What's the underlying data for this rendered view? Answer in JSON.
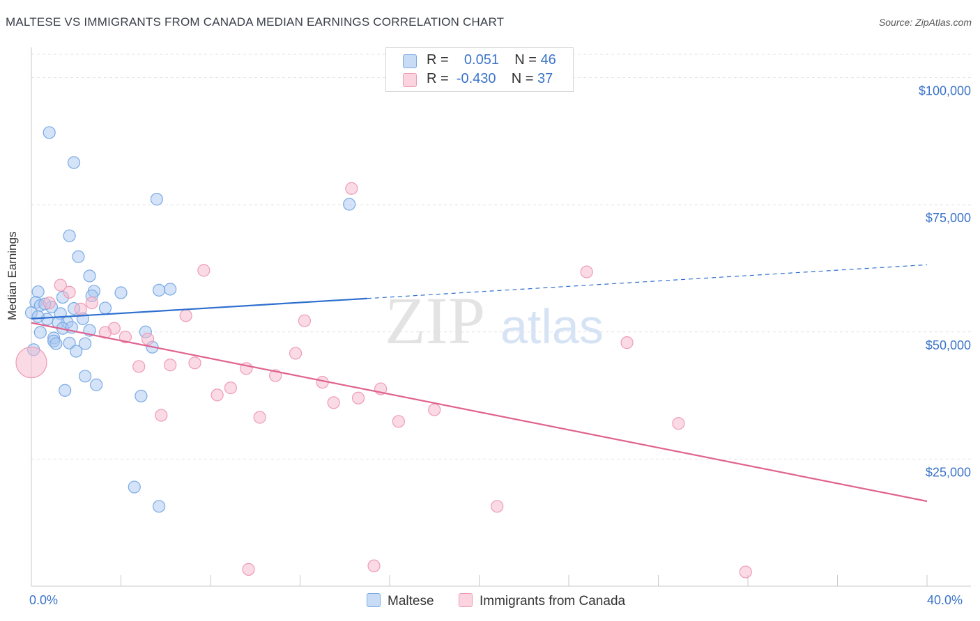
{
  "title": "MALTESE VS IMMIGRANTS FROM CANADA MEDIAN EARNINGS CORRELATION CHART",
  "source": "Source: ZipAtlas.com",
  "watermark": {
    "zip": "ZIP",
    "atlas": "atlas"
  },
  "legend": {
    "rows": [
      {
        "r_label": "R =",
        "r_value": "0.051",
        "n_label": "N =",
        "n_value": "46",
        "color": "#a9c8ef"
      },
      {
        "r_label": "R =",
        "r_value": "-0.430",
        "n_label": "N =",
        "n_value": "37",
        "color": "#f5b8cb"
      }
    ]
  },
  "bottom_legend": [
    {
      "label": "Maltese",
      "color": "#a9c8ef"
    },
    {
      "label": "Immigrants from Canada",
      "color": "#f5b8cb"
    }
  ],
  "x_axis": {
    "min_label": "0.0%",
    "max_label": "40.0%"
  },
  "chart_data": {
    "type": "scatter",
    "title": "MALTESE VS IMMIGRANTS FROM CANADA MEDIAN EARNINGS CORRELATION CHART",
    "xlabel": "",
    "ylabel": "Median Earnings",
    "xlim": [
      0,
      40
    ],
    "ylim": [
      0,
      105000
    ],
    "y_ticks": [
      {
        "value": 25000,
        "label": "$25,000"
      },
      {
        "value": 50000,
        "label": "$50,000"
      },
      {
        "value": 75000,
        "label": "$75,000"
      },
      {
        "value": 100000,
        "label": "$100,000"
      }
    ],
    "grid": true,
    "legend_position": "top-center",
    "series": [
      {
        "name": "Maltese",
        "color": "#7aaae6",
        "fill": "#a9c8ef",
        "line_color": "#2e6fcf",
        "trend": {
          "x0": 0,
          "y0": 52600,
          "x1": 40,
          "y1": 63200,
          "solid_until": 15
        },
        "points": [
          {
            "x": 0.8,
            "y": 89200
          },
          {
            "x": 1.9,
            "y": 83300
          },
          {
            "x": 5.6,
            "y": 76100
          },
          {
            "x": 14.2,
            "y": 75100
          },
          {
            "x": 1.7,
            "y": 68900
          },
          {
            "x": 2.1,
            "y": 64800
          },
          {
            "x": 2.6,
            "y": 61000
          },
          {
            "x": 0.3,
            "y": 57900
          },
          {
            "x": 2.8,
            "y": 58000
          },
          {
            "x": 4.0,
            "y": 57700
          },
          {
            "x": 5.7,
            "y": 58200
          },
          {
            "x": 6.2,
            "y": 58400
          },
          {
            "x": 2.7,
            "y": 57100
          },
          {
            "x": 1.4,
            "y": 56800
          },
          {
            "x": 0.2,
            "y": 55800
          },
          {
            "x": 0.4,
            "y": 55200
          },
          {
            "x": 0.9,
            "y": 54900
          },
          {
            "x": 1.9,
            "y": 54600
          },
          {
            "x": 3.3,
            "y": 54700
          },
          {
            "x": 0.0,
            "y": 53800
          },
          {
            "x": 1.3,
            "y": 53600
          },
          {
            "x": 0.7,
            "y": 52500
          },
          {
            "x": 2.3,
            "y": 52600
          },
          {
            "x": 1.6,
            "y": 51900
          },
          {
            "x": 1.2,
            "y": 51800
          },
          {
            "x": 1.4,
            "y": 50700
          },
          {
            "x": 2.6,
            "y": 50300
          },
          {
            "x": 0.4,
            "y": 49900
          },
          {
            "x": 1.0,
            "y": 48800
          },
          {
            "x": 5.1,
            "y": 50000
          },
          {
            "x": 1.0,
            "y": 48200
          },
          {
            "x": 1.1,
            "y": 47700
          },
          {
            "x": 1.7,
            "y": 47800
          },
          {
            "x": 2.4,
            "y": 47700
          },
          {
            "x": 0.1,
            "y": 46500
          },
          {
            "x": 2.0,
            "y": 46200
          },
          {
            "x": 5.4,
            "y": 47000
          },
          {
            "x": 2.4,
            "y": 41300
          },
          {
            "x": 2.9,
            "y": 39600
          },
          {
            "x": 1.5,
            "y": 38500
          },
          {
            "x": 4.9,
            "y": 37400
          },
          {
            "x": 4.6,
            "y": 19500
          },
          {
            "x": 5.7,
            "y": 15700
          },
          {
            "x": 0.6,
            "y": 55500
          },
          {
            "x": 1.8,
            "y": 50900
          },
          {
            "x": 0.3,
            "y": 53000
          }
        ]
      },
      {
        "name": "Immigrants from Canada",
        "color": "#ef9bb5",
        "fill": "#f5b8cb",
        "line_color": "#e0628f",
        "trend": {
          "x0": 0,
          "y0": 51800,
          "x1": 40,
          "y1": 16700,
          "solid_until": 40
        },
        "points": [
          {
            "x": 14.3,
            "y": 78200
          },
          {
            "x": 7.7,
            "y": 62100
          },
          {
            "x": 24.8,
            "y": 61800
          },
          {
            "x": 1.3,
            "y": 59200
          },
          {
            "x": 1.7,
            "y": 57800
          },
          {
            "x": 0.8,
            "y": 55700
          },
          {
            "x": 2.7,
            "y": 55700
          },
          {
            "x": 2.2,
            "y": 54500
          },
          {
            "x": 6.9,
            "y": 53200
          },
          {
            "x": 12.2,
            "y": 52200
          },
          {
            "x": 3.7,
            "y": 50700
          },
          {
            "x": 3.3,
            "y": 49900
          },
          {
            "x": 4.2,
            "y": 49000
          },
          {
            "x": 5.2,
            "y": 48600
          },
          {
            "x": 26.6,
            "y": 47900
          },
          {
            "x": 11.8,
            "y": 45800
          },
          {
            "x": 7.3,
            "y": 43900
          },
          {
            "x": 6.2,
            "y": 43500
          },
          {
            "x": 4.8,
            "y": 43200
          },
          {
            "x": 9.6,
            "y": 42800
          },
          {
            "x": 10.9,
            "y": 41400
          },
          {
            "x": 13.0,
            "y": 40100
          },
          {
            "x": 8.9,
            "y": 39000
          },
          {
            "x": 15.6,
            "y": 38800
          },
          {
            "x": 8.3,
            "y": 37600
          },
          {
            "x": 14.6,
            "y": 37000
          },
          {
            "x": 13.5,
            "y": 36100
          },
          {
            "x": 18.0,
            "y": 34700
          },
          {
            "x": 5.8,
            "y": 33600
          },
          {
            "x": 10.2,
            "y": 33200
          },
          {
            "x": 16.4,
            "y": 32400
          },
          {
            "x": 28.9,
            "y": 32000
          },
          {
            "x": 20.8,
            "y": 15700
          },
          {
            "x": 9.7,
            "y": 3300
          },
          {
            "x": 15.3,
            "y": 4000
          },
          {
            "x": 31.9,
            "y": 2800
          },
          {
            "x": 0.0,
            "y": 44000,
            "size": "large"
          }
        ]
      }
    ]
  }
}
